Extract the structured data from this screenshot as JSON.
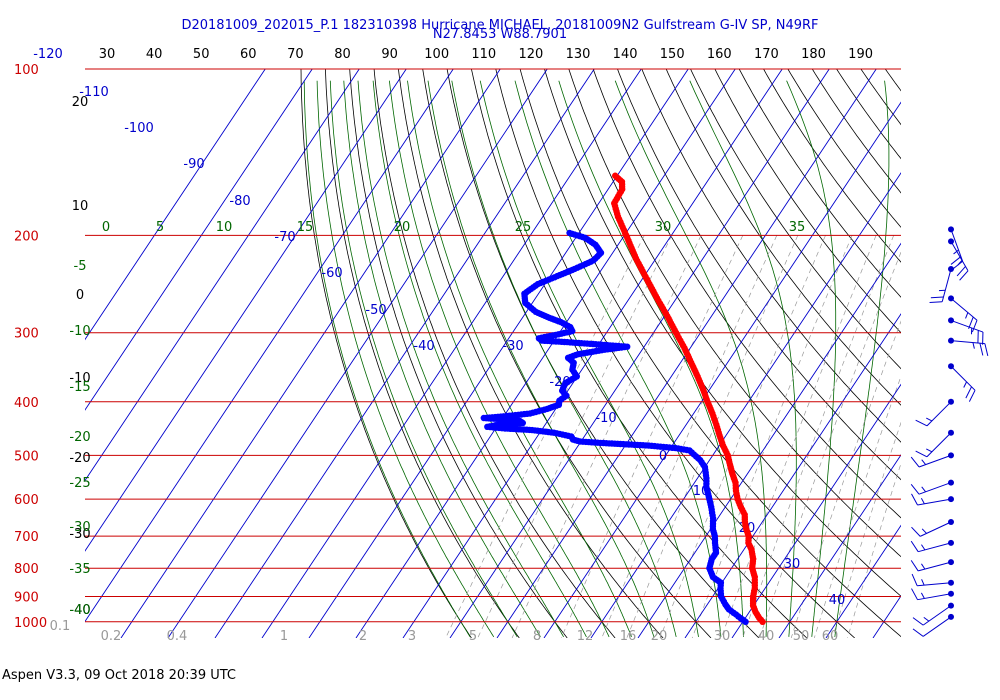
{
  "header": {
    "line1": "D20181009_202015_P.1 182310398 Hurricane MICHAEL, 20181009N2 Gulfstream G-IV SP, N49RF",
    "line2": "N27.8453 W88.7901"
  },
  "footer": "Aspen V3.3, 09 Oct 2018  20:39 UTC",
  "colors": {
    "isobar": "#cc0000",
    "isotherm": "#0000cc",
    "dry_adiabat": "#000000",
    "moist_adiabat": "#006600",
    "mixing_ratio": "#999999",
    "temperature": "#ff0000",
    "dewpoint": "#0000ff",
    "header_text": "#0000cc"
  },
  "chart_data": {
    "type": "skew-t log-p",
    "pressure_axis": {
      "ticks": [
        100,
        200,
        300,
        400,
        500,
        600,
        700,
        800,
        900,
        1000
      ],
      "labels": [
        "100",
        "200",
        "300",
        "400",
        "500",
        "600",
        "700",
        "800",
        "900",
        "1000"
      ],
      "range_hPa": [
        1070,
        100
      ]
    },
    "top_axis": {
      "ticks": [
        -120,
        30,
        40,
        50,
        60,
        70,
        80,
        90,
        100,
        110,
        120,
        130,
        140,
        150,
        160,
        170,
        180,
        190
      ],
      "labels": [
        "-120",
        "30",
        "40",
        "50",
        "60",
        "70",
        "80",
        "90",
        "100",
        "110",
        "120",
        "130",
        "140",
        "150",
        "160",
        "170",
        "180",
        "190"
      ]
    },
    "isotherm_labels": [
      {
        "value": -110,
        "label": "-110"
      },
      {
        "value": -100,
        "label": "-100"
      },
      {
        "value": -90,
        "label": "-90"
      },
      {
        "value": -80,
        "label": "-80"
      },
      {
        "value": -70,
        "label": "-70"
      },
      {
        "value": -60,
        "label": "-60"
      },
      {
        "value": -50,
        "label": "-50"
      },
      {
        "value": -40,
        "label": "-40"
      },
      {
        "value": -30,
        "label": "-30"
      },
      {
        "value": -20,
        "label": "-20"
      },
      {
        "value": -10,
        "label": "-10"
      },
      {
        "value": 0,
        "label": "0"
      },
      {
        "value": 10,
        "label": "10"
      },
      {
        "value": 20,
        "label": "20"
      },
      {
        "value": 30,
        "label": "30"
      },
      {
        "value": 40,
        "label": "40"
      }
    ],
    "dry_adiabat_labels": [
      "20",
      "10",
      "0",
      "-10",
      "-20",
      "-30",
      "-40"
    ],
    "moist_adiabat_labels": [
      {
        "value": 0,
        "label": "0"
      },
      {
        "value": 5,
        "label": "5"
      },
      {
        "value": 10,
        "label": "10"
      },
      {
        "value": 15,
        "label": "15"
      },
      {
        "value": 20,
        "label": "20"
      },
      {
        "value": 25,
        "label": "25"
      },
      {
        "value": 30,
        "label": "30"
      },
      {
        "value": 35,
        "label": "35"
      }
    ],
    "moist_adiabat_left_labels": [
      "-5",
      "-10",
      "-15",
      "-20",
      "-25",
      "-30",
      "-35",
      "-40"
    ],
    "mixing_ratio_labels": [
      "0.1",
      "0.2",
      "0.4",
      "1",
      "2",
      "3",
      "5",
      "8",
      "12",
      "16",
      "20",
      "30",
      "40",
      "50",
      "60"
    ],
    "series": [
      {
        "name": "Temperature",
        "color": "#ff0000",
        "points": [
          {
            "p": 1000,
            "t": 24.2
          },
          {
            "p": 985,
            "t": 23.0
          },
          {
            "p": 960,
            "t": 21.3
          },
          {
            "p": 935,
            "t": 19.9
          },
          {
            "p": 900,
            "t": 18.6
          },
          {
            "p": 870,
            "t": 17.8
          },
          {
            "p": 830,
            "t": 16.2
          },
          {
            "p": 800,
            "t": 14.4
          },
          {
            "p": 770,
            "t": 13.3
          },
          {
            "p": 740,
            "t": 11.6
          },
          {
            "p": 720,
            "t": 10.0
          },
          {
            "p": 700,
            "t": 9.1
          },
          {
            "p": 680,
            "t": 7.6
          },
          {
            "p": 660,
            "t": 6.3
          },
          {
            "p": 640,
            "t": 5.2
          },
          {
            "p": 620,
            "t": 3.3
          },
          {
            "p": 600,
            "t": 1.5
          },
          {
            "p": 580,
            "t": 0.0
          },
          {
            "p": 560,
            "t": -1.3
          },
          {
            "p": 540,
            "t": -3.2
          },
          {
            "p": 520,
            "t": -5.0
          },
          {
            "p": 500,
            "t": -6.8
          },
          {
            "p": 480,
            "t": -9.2
          },
          {
            "p": 460,
            "t": -11.4
          },
          {
            "p": 440,
            "t": -13.6
          },
          {
            "p": 420,
            "t": -16.0
          },
          {
            "p": 400,
            "t": -18.7
          },
          {
            "p": 380,
            "t": -21.4
          },
          {
            "p": 360,
            "t": -24.4
          },
          {
            "p": 340,
            "t": -27.7
          },
          {
            "p": 320,
            "t": -31.2
          },
          {
            "p": 300,
            "t": -35.2
          },
          {
            "p": 280,
            "t": -39.4
          },
          {
            "p": 260,
            "t": -44.1
          },
          {
            "p": 240,
            "t": -49.0
          },
          {
            "p": 220,
            "t": -54.3
          },
          {
            "p": 200,
            "t": -59.6
          },
          {
            "p": 185,
            "t": -64.0
          },
          {
            "p": 175,
            "t": -66.7
          },
          {
            "p": 165,
            "t": -67.0
          },
          {
            "p": 160,
            "t": -68.1
          },
          {
            "p": 156,
            "t": -70.4
          }
        ]
      },
      {
        "name": "Dewpoint",
        "color": "#0000ff",
        "points": [
          {
            "p": 1000,
            "t": 20.6
          },
          {
            "p": 985,
            "t": 19.0
          },
          {
            "p": 970,
            "t": 17.5
          },
          {
            "p": 950,
            "t": 15.3
          },
          {
            "p": 930,
            "t": 13.8
          },
          {
            "p": 900,
            "t": 11.8
          },
          {
            "p": 870,
            "t": 10.5
          },
          {
            "p": 850,
            "t": 9.8
          },
          {
            "p": 830,
            "t": 7.3
          },
          {
            "p": 800,
            "t": 5.3
          },
          {
            "p": 770,
            "t": 4.5
          },
          {
            "p": 750,
            "t": 4.5
          },
          {
            "p": 720,
            "t": 2.9
          },
          {
            "p": 700,
            "t": 1.9
          },
          {
            "p": 680,
            "t": 0.5
          },
          {
            "p": 650,
            "t": -1.0
          },
          {
            "p": 620,
            "t": -3.0
          },
          {
            "p": 600,
            "t": -4.5
          },
          {
            "p": 570,
            "t": -6.9
          },
          {
            "p": 550,
            "t": -8.1
          },
          {
            "p": 525,
            "t": -10.0
          },
          {
            "p": 510,
            "t": -12.0
          },
          {
            "p": 490,
            "t": -15.6
          },
          {
            "p": 485,
            "t": -19.0
          },
          {
            "p": 480,
            "t": -25.0
          },
          {
            "p": 475,
            "t": -35.0
          },
          {
            "p": 472,
            "t": -40.2
          },
          {
            "p": 468,
            "t": -42.0
          },
          {
            "p": 462,
            "t": -42.8
          },
          {
            "p": 455,
            "t": -47.0
          },
          {
            "p": 450,
            "t": -52.0
          },
          {
            "p": 447,
            "t": -58.0
          },
          {
            "p": 444,
            "t": -62.0
          },
          {
            "p": 440,
            "t": -60.0
          },
          {
            "p": 437,
            "t": -55.0
          },
          {
            "p": 433,
            "t": -56.0
          },
          {
            "p": 430,
            "t": -60.0
          },
          {
            "p": 428,
            "t": -64.0
          },
          {
            "p": 425,
            "t": -60.0
          },
          {
            "p": 420,
            "t": -54.8
          },
          {
            "p": 412,
            "t": -51.8
          },
          {
            "p": 405,
            "t": -49.9
          },
          {
            "p": 398,
            "t": -50.4
          },
          {
            "p": 390,
            "t": -49.6
          },
          {
            "p": 382,
            "t": -51.2
          },
          {
            "p": 370,
            "t": -51.6
          },
          {
            "p": 360,
            "t": -50.1
          },
          {
            "p": 350,
            "t": -52.0
          },
          {
            "p": 340,
            "t": -52.7
          },
          {
            "p": 333,
            "t": -54.6
          },
          {
            "p": 328,
            "t": -53.0
          },
          {
            "p": 322,
            "t": -48.0
          },
          {
            "p": 318,
            "t": -43.6
          },
          {
            "p": 315,
            "t": -50.0
          },
          {
            "p": 312,
            "t": -57.0
          },
          {
            "p": 310,
            "t": -62.6
          },
          {
            "p": 307,
            "t": -63.6
          },
          {
            "p": 302,
            "t": -60.0
          },
          {
            "p": 298,
            "t": -57.5
          },
          {
            "p": 293,
            "t": -58.5
          },
          {
            "p": 287,
            "t": -61.2
          },
          {
            "p": 282,
            "t": -64.2
          },
          {
            "p": 275,
            "t": -68.0
          },
          {
            "p": 265,
            "t": -71.5
          },
          {
            "p": 255,
            "t": -73.0
          },
          {
            "p": 245,
            "t": -71.5
          },
          {
            "p": 237,
            "t": -68.5
          },
          {
            "p": 230,
            "t": -65.8
          },
          {
            "p": 222,
            "t": -63.0
          },
          {
            "p": 215,
            "t": -62.5
          },
          {
            "p": 208,
            "t": -64.8
          },
          {
            "p": 202,
            "t": -68.0
          },
          {
            "p": 198,
            "t": -72.0
          }
        ]
      }
    ],
    "wind_barbs": [
      {
        "p": 195,
        "speed_kt": 25,
        "dir_deg": 160
      },
      {
        "p": 205,
        "speed_kt": 25,
        "dir_deg": 150
      },
      {
        "p": 230,
        "speed_kt": 25,
        "dir_deg": 195
      },
      {
        "p": 260,
        "speed_kt": 25,
        "dir_deg": 130
      },
      {
        "p": 285,
        "speed_kt": 25,
        "dir_deg": 110
      },
      {
        "p": 310,
        "speed_kt": 25,
        "dir_deg": 95
      },
      {
        "p": 345,
        "speed_kt": 25,
        "dir_deg": 135
      },
      {
        "p": 400,
        "speed_kt": 15,
        "dir_deg": 225
      },
      {
        "p": 455,
        "speed_kt": 15,
        "dir_deg": 225
      },
      {
        "p": 500,
        "speed_kt": 15,
        "dir_deg": 250
      },
      {
        "p": 560,
        "speed_kt": 15,
        "dir_deg": 250
      },
      {
        "p": 600,
        "speed_kt": 15,
        "dir_deg": 260
      },
      {
        "p": 660,
        "speed_kt": 15,
        "dir_deg": 245
      },
      {
        "p": 720,
        "speed_kt": 15,
        "dir_deg": 255
      },
      {
        "p": 780,
        "speed_kt": 15,
        "dir_deg": 255
      },
      {
        "p": 850,
        "speed_kt": 15,
        "dir_deg": 265
      },
      {
        "p": 890,
        "speed_kt": 15,
        "dir_deg": 260
      },
      {
        "p": 935,
        "speed_kt": 15,
        "dir_deg": 235
      },
      {
        "p": 980,
        "speed_kt": 10,
        "dir_deg": 235
      }
    ]
  }
}
